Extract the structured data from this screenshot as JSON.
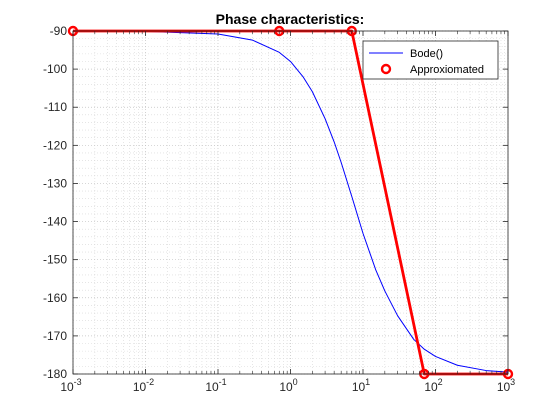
{
  "chart_data": {
    "type": "line",
    "title": "Phase characteristics:",
    "xlabel": "",
    "ylabel": "",
    "xscale": "log",
    "xlim": [
      0.001,
      1000
    ],
    "ylim": [
      -180,
      -90
    ],
    "grid": "major and minor, dotted",
    "legend_position": "top-right",
    "x_ticks": [
      {
        "value": 0.001,
        "base": "10",
        "exp": "-3"
      },
      {
        "value": 0.01,
        "base": "10",
        "exp": "-2"
      },
      {
        "value": 0.1,
        "base": "10",
        "exp": "-1"
      },
      {
        "value": 1,
        "base": "10",
        "exp": "0"
      },
      {
        "value": 10,
        "base": "10",
        "exp": "1"
      },
      {
        "value": 100,
        "base": "10",
        "exp": "2"
      },
      {
        "value": 1000,
        "base": "10",
        "exp": "3"
      }
    ],
    "y_ticks": [
      {
        "value": -90,
        "label": "-90"
      },
      {
        "value": -100,
        "label": "-100"
      },
      {
        "value": -110,
        "label": "-110"
      },
      {
        "value": -120,
        "label": "-120"
      },
      {
        "value": -130,
        "label": "-130"
      },
      {
        "value": -140,
        "label": "-140"
      },
      {
        "value": -150,
        "label": "-150"
      },
      {
        "value": -160,
        "label": "-160"
      },
      {
        "value": -170,
        "label": "-170"
      },
      {
        "value": -180,
        "label": "-180"
      }
    ],
    "series": [
      {
        "name": "Bode()",
        "color": "#0000ff",
        "style": "line",
        "x": [
          0.001,
          0.01,
          0.1,
          0.3,
          0.7,
          1,
          1.5,
          2,
          3,
          4,
          5,
          7,
          10,
          15,
          20,
          30,
          50,
          70,
          100,
          200,
          500,
          1000
        ],
        "y": [
          -90.0,
          -90.1,
          -90.8,
          -92.4,
          -95.6,
          -98.0,
          -102.1,
          -105.9,
          -113.0,
          -119.1,
          -124.5,
          -133.4,
          -143.1,
          -152.7,
          -158.2,
          -164.7,
          -170.9,
          -173.5,
          -175.4,
          -177.7,
          -179.1,
          -179.5
        ]
      },
      {
        "name": "Approxiomated",
        "color": "#ff0000",
        "style": "line-with-circles",
        "x": [
          0.001,
          0.7,
          7,
          70,
          1000
        ],
        "y": [
          -90,
          -90,
          -90,
          -180,
          -180
        ]
      }
    ]
  }
}
